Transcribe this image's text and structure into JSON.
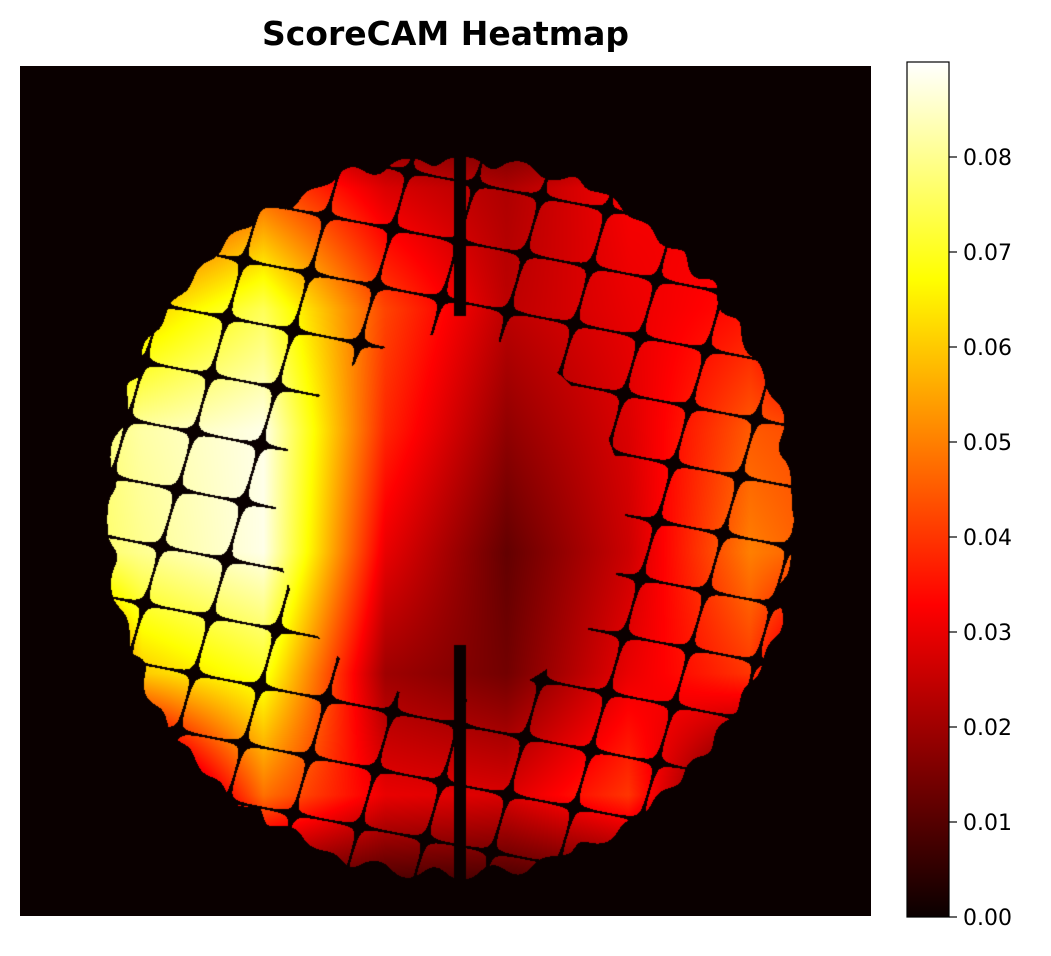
{
  "chart_data": {
    "type": "heatmap",
    "title": "ScoreCAM Heatmap",
    "colormap": "hot",
    "axes_visible": false,
    "colorbar": {
      "position": "right",
      "vmin": 0.0,
      "vmax": 0.09,
      "ticks": [
        0.0,
        0.01,
        0.02,
        0.03,
        0.04,
        0.05,
        0.06,
        0.07,
        0.08
      ],
      "tick_labels": [
        "0.00",
        "0.01",
        "0.02",
        "0.03",
        "0.04",
        "0.05",
        "0.06",
        "0.07",
        "0.08"
      ]
    },
    "grid_resolution": [
      8,
      8
    ],
    "values": [
      [
        0.0,
        0.0,
        0.0,
        0.0,
        0.0,
        0.0,
        0.0,
        0.0
      ],
      [
        0.0,
        0.03,
        0.045,
        0.028,
        0.022,
        0.032,
        0.03,
        0.0
      ],
      [
        0.0,
        0.06,
        0.075,
        0.042,
        0.024,
        0.03,
        0.035,
        0.0
      ],
      [
        0.07,
        0.082,
        0.088,
        0.038,
        0.018,
        0.028,
        0.045,
        0.04
      ],
      [
        0.07,
        0.08,
        0.088,
        0.03,
        0.012,
        0.026,
        0.05,
        0.04
      ],
      [
        0.0,
        0.06,
        0.07,
        0.02,
        0.014,
        0.03,
        0.04,
        0.0
      ],
      [
        0.0,
        0.0,
        0.048,
        0.03,
        0.028,
        0.04,
        0.0,
        0.0
      ],
      [
        0.0,
        0.0,
        0.0,
        0.0,
        0.0,
        0.0,
        0.0,
        0.0
      ]
    ]
  }
}
